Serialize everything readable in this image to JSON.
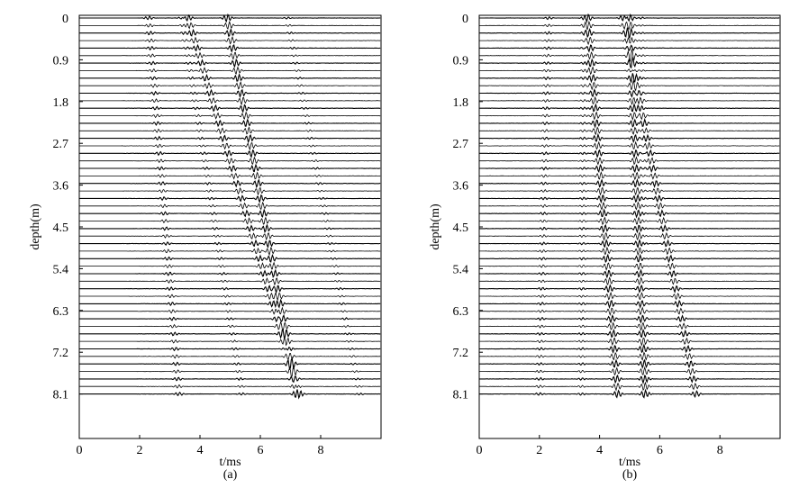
{
  "chart_data": [
    {
      "type": "wiggle-trace",
      "panel_label": "(a)",
      "xlabel": "t/ms",
      "ylabel": "depth(m)",
      "xlim": [
        0,
        10
      ],
      "ylim": [
        0,
        9.0
      ],
      "x_ticks": [
        "0",
        "2",
        "4",
        "6",
        "8"
      ],
      "y_ticks": [
        "0",
        "0.9",
        "1.8",
        "2.7",
        "3.6",
        "4.5",
        "5.4",
        "6.3",
        "7.2",
        "8.1"
      ],
      "trace_count": 51,
      "grid": false,
      "events": [
        {
          "t_start": 2.3,
          "t_end": 3.3,
          "strength": 0.45
        },
        {
          "t_start": 3.6,
          "t_end": 7.3,
          "strength": 0.8
        },
        {
          "t_start": 4.9,
          "t_end": 7.2,
          "strength": 1.0
        },
        {
          "t_start": 3.4,
          "t_end": 5.4,
          "strength": 0.3
        },
        {
          "t_start": 6.9,
          "t_end": 9.3,
          "strength": 0.25
        }
      ]
    },
    {
      "type": "wiggle-trace",
      "panel_label": "(b)",
      "xlabel": "t/ms",
      "ylabel": "depth(m)",
      "xlim": [
        0,
        10
      ],
      "ylim": [
        0,
        9.0
      ],
      "x_ticks": [
        "0",
        "2",
        "4",
        "6",
        "8"
      ],
      "y_ticks": [
        "0",
        "0.9",
        "1.8",
        "2.7",
        "3.6",
        "4.5",
        "5.4",
        "6.3",
        "7.2",
        "8.1"
      ],
      "trace_count": 51,
      "grid": false,
      "events": [
        {
          "t_start": 2.3,
          "t_end": 2.0,
          "strength": 0.35
        },
        {
          "t_start": 3.6,
          "t_end": 4.6,
          "strength": 1.0
        },
        {
          "t_start": 5.0,
          "t_end": 5.5,
          "strength": 1.0
        },
        {
          "t_start": 4.8,
          "t_end": 7.2,
          "strength": 0.85
        },
        {
          "t_start": 3.5,
          "t_end": 3.4,
          "strength": 0.3
        },
        {
          "t_start": 5.4,
          "t_end": 5.6,
          "strength": 0.2
        }
      ]
    }
  ]
}
